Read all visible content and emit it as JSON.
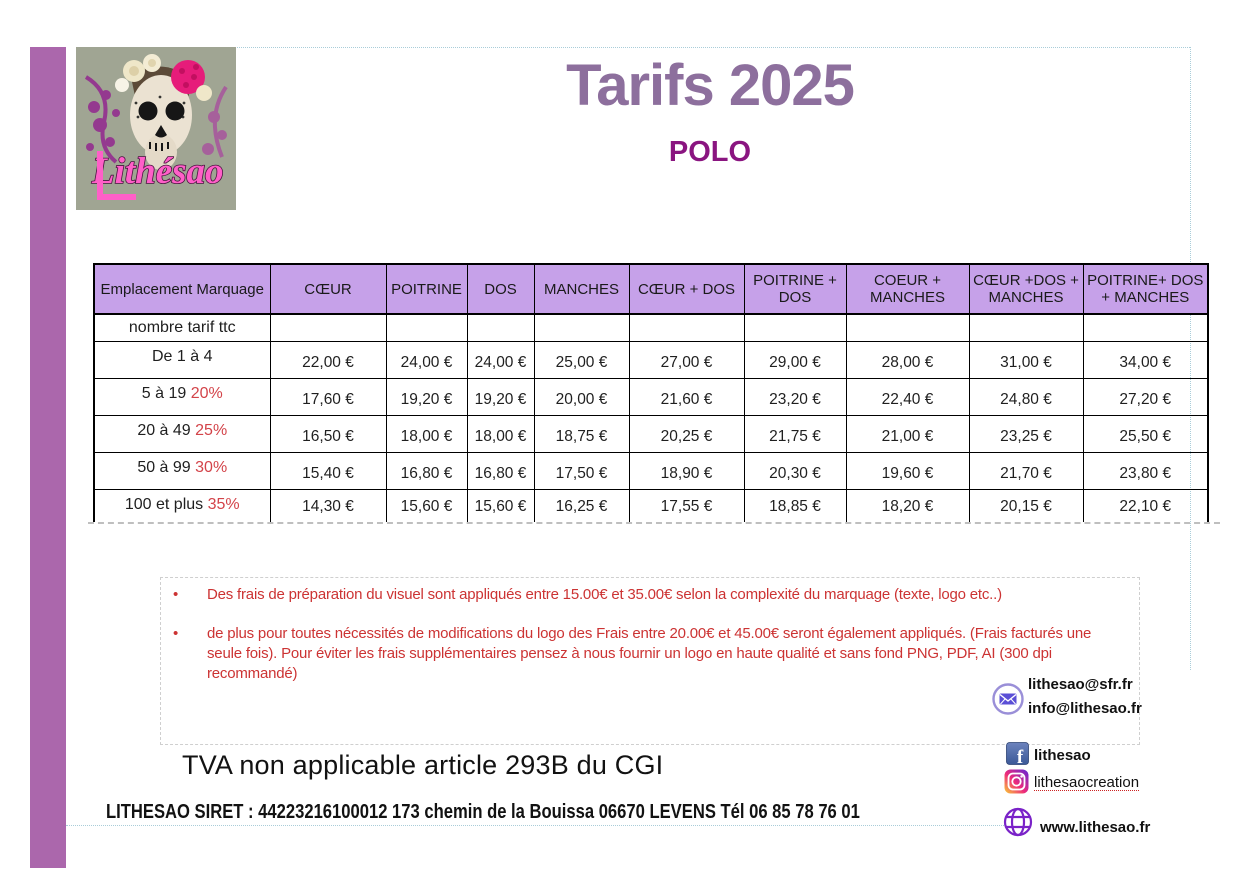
{
  "page": {
    "title": "Tarifs 2025",
    "subtitle": "POLO"
  },
  "logo": {
    "brand": "Lithésao"
  },
  "table": {
    "columns": [
      "Emplacement Marquage",
      "CŒUR",
      "POITRINE",
      "DOS",
      "MANCHES",
      "CŒUR + DOS",
      "POITRINE + DOS",
      "COEUR + MANCHES",
      "CŒUR +DOS + MANCHES",
      "POITRINE+ DOS + MANCHES"
    ],
    "subheader_label": "nombre tarif ttc",
    "rows": [
      {
        "label": "De 1 à 4",
        "percent": "",
        "values": [
          "22,00 €",
          "24,00 €",
          "24,00 €",
          "25,00 €",
          "27,00 €",
          "29,00 €",
          "28,00 €",
          "31,00 €",
          "34,00 €"
        ]
      },
      {
        "label": "5 à 19",
        "percent": "20%",
        "values": [
          "17,60 €",
          "19,20 €",
          "19,20 €",
          "20,00 €",
          "21,60 €",
          "23,20 €",
          "22,40 €",
          "24,80 €",
          "27,20 €"
        ]
      },
      {
        "label": "20 à 49",
        "percent": "25%",
        "values": [
          "16,50 €",
          "18,00 €",
          "18,00 €",
          "18,75 €",
          "20,25 €",
          "21,75 €",
          "21,00 €",
          "23,25 €",
          "25,50 €"
        ]
      },
      {
        "label": "50 à 99",
        "percent": "30%",
        "values": [
          "15,40 €",
          "16,80 €",
          "16,80 €",
          "17,50 €",
          "18,90 €",
          "20,30 €",
          "19,60 €",
          "21,70 €",
          "23,80 €"
        ]
      },
      {
        "label": "100  et plus",
        "percent": "35%",
        "values": [
          "14,30 €",
          "15,60 €",
          "15,60 €",
          "16,25 €",
          "17,55 €",
          "18,85 €",
          "18,20 €",
          "20,15 €",
          "22,10 €"
        ]
      }
    ]
  },
  "notes": {
    "items": [
      {
        "text": "Des frais de préparation du visuel sont appliqués entre 15.00€ et 35.00€ selon la complexité du marquage (texte, logo etc..)"
      },
      {
        "text": "de plus pour toutes nécessités de modifications du logo des Frais entre 20.00€ et 45.00€ seront également appliqués. (Frais facturés une seule fois). Pour éviter les frais supplémentaires pensez à nous fournir un logo en haute qualité et sans fond PNG, PDF, AI (300 dpi recommandé)"
      }
    ]
  },
  "contacts": {
    "emails": [
      "lithesao@sfr.fr",
      "info@lithesao.fr"
    ],
    "facebook": "lithesao",
    "instagram": "lithesaocreation",
    "website": "www.lithesao.fr"
  },
  "footer": {
    "tva": "TVA non applicable article 293B du CGI",
    "siret": "LITHESAO SIRET : 44223216100012 173 chemin de la Bouissa  06670 LEVENS Tél 06 85 78 76 01"
  },
  "colors": {
    "accent_bar": "#ab67ac",
    "table_header_fill": "#c6a1e9",
    "title": "#8d6f9d",
    "subtitle": "#8a1580",
    "notes_red": "#cc3333",
    "percent_red": "#d34349",
    "guide_blue": "#a9cdd9"
  }
}
